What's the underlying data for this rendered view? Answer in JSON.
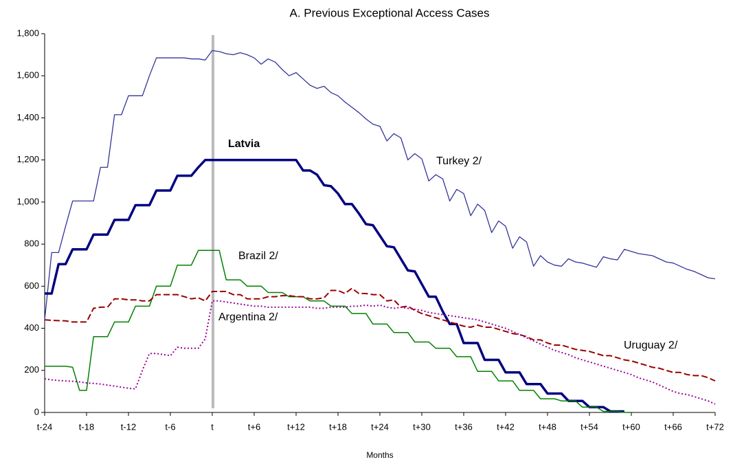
{
  "chart_data": {
    "type": "line",
    "title": "A. Previous Exceptional Access Cases",
    "xlabel": "Months",
    "x": [
      -24,
      -23,
      -22,
      -21,
      -20,
      -19,
      -18,
      -17,
      -16,
      -15,
      -14,
      -13,
      -12,
      -11,
      -10,
      -9,
      -8,
      -7,
      -6,
      -5,
      -4,
      -3,
      -2,
      -1,
      0,
      1,
      2,
      3,
      4,
      5,
      6,
      7,
      8,
      9,
      10,
      11,
      12,
      13,
      14,
      15,
      16,
      17,
      18,
      19,
      20,
      21,
      22,
      23,
      24,
      25,
      26,
      27,
      28,
      29,
      30,
      31,
      32,
      33,
      34,
      35,
      36,
      37,
      38,
      39,
      40,
      41,
      42,
      43,
      44,
      45,
      46,
      47,
      48,
      49,
      50,
      51,
      52,
      53,
      54,
      55,
      56,
      57,
      58,
      59,
      60,
      61,
      62,
      63,
      64,
      65,
      66,
      67,
      68,
      69,
      70,
      71,
      72
    ],
    "xlim": [
      -24,
      72
    ],
    "xticks": [
      {
        "value": -24,
        "label": "t-24"
      },
      {
        "value": -18,
        "label": "t-18"
      },
      {
        "value": -12,
        "label": "t-12"
      },
      {
        "value": -6,
        "label": "t-6"
      },
      {
        "value": 0,
        "label": "t"
      },
      {
        "value": 6,
        "label": "t+6"
      },
      {
        "value": 12,
        "label": "t+12"
      },
      {
        "value": 18,
        "label": "t+18"
      },
      {
        "value": 24,
        "label": "t+24"
      },
      {
        "value": 30,
        "label": "t+30"
      },
      {
        "value": 36,
        "label": "t+36"
      },
      {
        "value": 42,
        "label": "t+42"
      },
      {
        "value": 48,
        "label": "t+48"
      },
      {
        "value": 54,
        "label": "t+54"
      },
      {
        "value": 60,
        "label": "t+60"
      },
      {
        "value": 66,
        "label": "t+66"
      },
      {
        "value": 72,
        "label": "t+72"
      }
    ],
    "ylim": [
      0,
      1800
    ],
    "yticks": [
      0,
      200,
      400,
      600,
      800,
      {
        "value": 1000,
        "label": "1,000"
      },
      {
        "value": 1200,
        "label": "1,200"
      },
      {
        "value": 1400,
        "label": "1,400"
      },
      {
        "value": 1600,
        "label": "1,600"
      },
      {
        "value": 1800,
        "label": "1,800"
      }
    ],
    "grid": false,
    "series": [
      {
        "name": "Turkey 2/",
        "color": "#333399",
        "style": "solid",
        "width": 1.3,
        "values": [
          440,
          760,
          760,
          885,
          1005,
          1005,
          1005,
          1005,
          1165,
          1165,
          1415,
          1415,
          1505,
          1505,
          1505,
          1600,
          1685,
          1685,
          1685,
          1685,
          1685,
          1680,
          1680,
          1675,
          1720,
          1715,
          1705,
          1700,
          1710,
          1700,
          1685,
          1655,
          1680,
          1665,
          1630,
          1600,
          1615,
          1585,
          1555,
          1540,
          1550,
          1520,
          1505,
          1475,
          1450,
          1425,
          1395,
          1370,
          1360,
          1290,
          1325,
          1305,
          1200,
          1230,
          1205,
          1100,
          1130,
          1110,
          1005,
          1060,
          1040,
          935,
          990,
          960,
          855,
          910,
          885,
          780,
          835,
          810,
          695,
          745,
          715,
          700,
          695,
          730,
          715,
          710,
          700,
          690,
          740,
          730,
          725,
          775,
          765,
          755,
          750,
          745,
          730,
          715,
          710,
          695,
          680,
          670,
          655,
          640,
          635
        ]
      },
      {
        "name": "Latvia",
        "color": "#000080",
        "style": "solid",
        "width": 3.5,
        "values": [
          565,
          565,
          705,
          705,
          775,
          775,
          775,
          845,
          845,
          845,
          915,
          915,
          915,
          985,
          985,
          985,
          1055,
          1055,
          1055,
          1125,
          1125,
          1125,
          1165,
          1200,
          1200,
          1200,
          1200,
          1200,
          1200,
          1200,
          1200,
          1200,
          1200,
          1200,
          1200,
          1200,
          1200,
          1150,
          1150,
          1130,
          1080,
          1075,
          1040,
          990,
          990,
          945,
          895,
          890,
          840,
          790,
          785,
          730,
          675,
          670,
          610,
          550,
          550,
          480,
          420,
          420,
          330,
          330,
          330,
          250,
          250,
          250,
          190,
          190,
          190,
          135,
          135,
          135,
          90,
          90,
          90,
          55,
          55,
          55,
          25,
          25,
          25,
          5,
          5,
          5,
          null,
          null,
          null,
          null,
          null,
          null,
          null,
          null,
          null,
          null,
          null,
          null,
          null
        ]
      },
      {
        "name": "Brazil 2/",
        "color": "#008000",
        "style": "solid",
        "width": 1.5,
        "values": [
          220,
          220,
          220,
          220,
          215,
          105,
          105,
          360,
          360,
          360,
          430,
          430,
          430,
          505,
          505,
          505,
          600,
          600,
          600,
          700,
          700,
          700,
          770,
          770,
          770,
          770,
          630,
          630,
          630,
          600,
          600,
          600,
          570,
          570,
          570,
          550,
          550,
          550,
          530,
          530,
          530,
          505,
          505,
          505,
          470,
          470,
          470,
          420,
          420,
          420,
          380,
          380,
          380,
          335,
          335,
          335,
          305,
          305,
          305,
          265,
          265,
          265,
          195,
          195,
          195,
          150,
          150,
          150,
          105,
          105,
          105,
          65,
          65,
          65,
          55,
          55,
          55,
          25,
          25,
          25,
          5,
          5,
          5,
          0,
          0,
          null,
          null,
          null,
          null,
          null,
          null,
          null,
          null,
          null,
          null,
          null,
          null
        ]
      },
      {
        "name": "Uruguay 2/",
        "color": "#990000",
        "style": "dashed",
        "width": 2,
        "values": [
          440,
          438,
          436,
          435,
          430,
          430,
          430,
          495,
          500,
          500,
          540,
          540,
          535,
          535,
          530,
          530,
          560,
          560,
          560,
          560,
          550,
          540,
          545,
          530,
          575,
          575,
          575,
          560,
          560,
          540,
          540,
          540,
          550,
          550,
          555,
          555,
          550,
          550,
          540,
          540,
          545,
          580,
          580,
          565,
          590,
          565,
          565,
          560,
          560,
          530,
          535,
          500,
          505,
          485,
          470,
          460,
          450,
          440,
          430,
          420,
          410,
          405,
          415,
          405,
          405,
          395,
          385,
          375,
          370,
          360,
          345,
          345,
          330,
          320,
          320,
          310,
          300,
          295,
          290,
          280,
          270,
          270,
          260,
          250,
          245,
          235,
          225,
          215,
          210,
          200,
          190,
          190,
          180,
          175,
          175,
          165,
          150
        ]
      },
      {
        "name": "Argentina 2/",
        "color": "#990099",
        "style": "dotted",
        "width": 2,
        "values": [
          160,
          155,
          152,
          150,
          148,
          145,
          140,
          138,
          135,
          130,
          125,
          120,
          115,
          112,
          200,
          280,
          280,
          275,
          270,
          310,
          305,
          305,
          305,
          350,
          530,
          530,
          525,
          520,
          515,
          510,
          505,
          505,
          500,
          500,
          500,
          500,
          500,
          500,
          500,
          495,
          495,
          500,
          500,
          500,
          505,
          505,
          510,
          505,
          510,
          500,
          495,
          500,
          495,
          490,
          485,
          475,
          470,
          465,
          460,
          455,
          450,
          445,
          440,
          430,
          420,
          410,
          400,
          385,
          370,
          355,
          340,
          325,
          310,
          295,
          285,
          275,
          260,
          250,
          240,
          230,
          220,
          210,
          200,
          190,
          180,
          165,
          155,
          145,
          130,
          115,
          100,
          90,
          85,
          75,
          65,
          55,
          40
        ]
      }
    ]
  }
}
